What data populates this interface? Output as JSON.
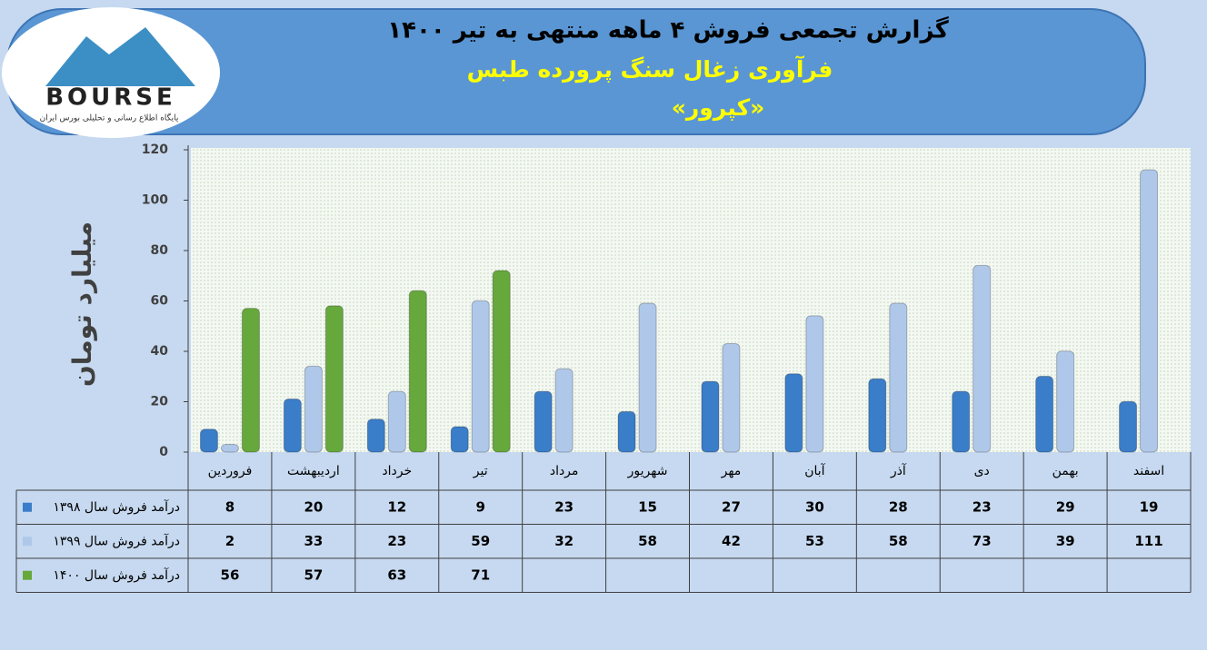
{
  "logo": {
    "text": "BOURSE",
    "tagline": "پایگاه اطلاع رسانی و تحلیلی بورس ایران"
  },
  "chart_data": {
    "type": "bar",
    "title": "گزارش تجمعی فروش ۴ ماهه منتهی به تیر ۱۴۰۰",
    "subtitle": "فرآوری زغال سنگ پرورده طبس",
    "company": "«کپرور»",
    "y_label": "میلیارد تومان",
    "categories": [
      "فروردین",
      "اردیبهشت",
      "خرداد",
      "تیر",
      "مرداد",
      "شهریور",
      "مهر",
      "آبان",
      "آذر",
      "دی",
      "بهمن",
      "اسفند"
    ],
    "series": [
      {
        "name": "درآمد فروش سال ۱۳۹۸",
        "color": "#3a7dc8",
        "values": [
          8,
          20,
          12,
          9,
          23,
          15,
          27,
          30,
          28,
          23,
          29,
          19
        ]
      },
      {
        "name": "درآمد فروش سال ۱۳۹۹",
        "color": "#afc8ea",
        "values": [
          2,
          33,
          23,
          59,
          32,
          58,
          42,
          53,
          58,
          73,
          39,
          111
        ]
      },
      {
        "name": "درآمد فروش سال ۱۴۰۰",
        "color": "#66a83c",
        "values": [
          56,
          57,
          63,
          71,
          null,
          null,
          null,
          null,
          null,
          null,
          null,
          null
        ]
      }
    ],
    "ylim": [
      0,
      120
    ],
    "yticks": [
      0,
      20,
      40,
      60,
      80,
      100,
      120
    ],
    "data_table": true
  }
}
